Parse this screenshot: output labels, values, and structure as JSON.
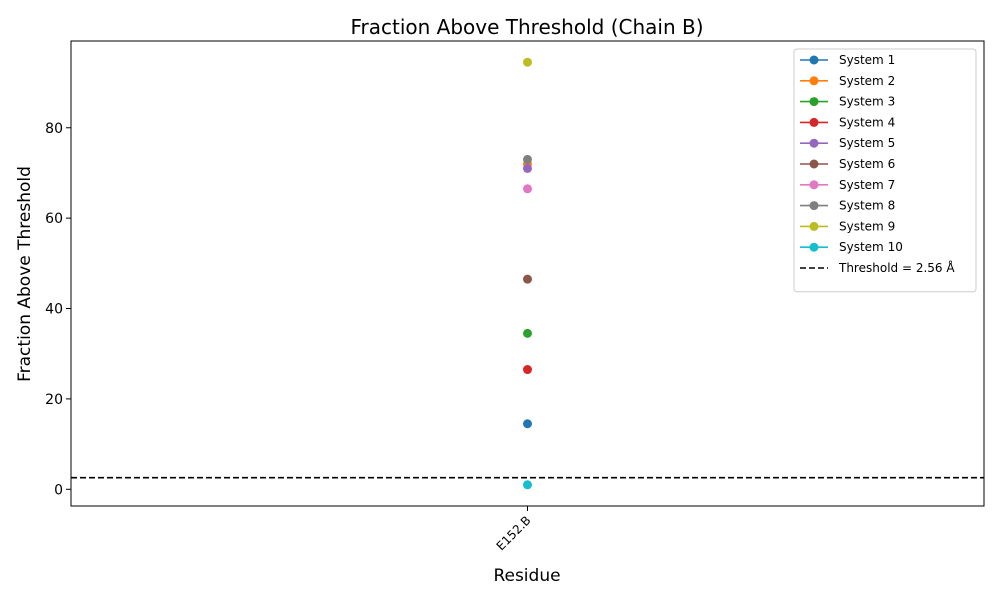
{
  "chart_data": {
    "type": "scatter",
    "title": "Fraction Above Threshold (Chain B)",
    "xlabel": "Residue",
    "ylabel": "Fraction Above Threshold",
    "categories": [
      "E152.B"
    ],
    "ylim": [
      -3.7,
      99.2
    ],
    "yticks": [
      0,
      20,
      40,
      60,
      80
    ],
    "grid": false,
    "legend_position": "top-right",
    "series": [
      {
        "name": "System 1",
        "color": "#1f77b4",
        "values": [
          14.5
        ]
      },
      {
        "name": "System 2",
        "color": "#ff7f0e",
        "values": [
          72.0
        ]
      },
      {
        "name": "System 3",
        "color": "#2ca02c",
        "values": [
          34.5
        ]
      },
      {
        "name": "System 4",
        "color": "#d62728",
        "values": [
          26.5
        ]
      },
      {
        "name": "System 5",
        "color": "#9467bd",
        "values": [
          71.0
        ]
      },
      {
        "name": "System 6",
        "color": "#8c564b",
        "values": [
          46.5
        ]
      },
      {
        "name": "System 7",
        "color": "#e377c2",
        "values": [
          66.5
        ]
      },
      {
        "name": "System 8",
        "color": "#7f7f7f",
        "values": [
          73.0
        ]
      },
      {
        "name": "System 9",
        "color": "#bcbd22",
        "values": [
          94.5
        ]
      },
      {
        "name": "System 10",
        "color": "#17becf",
        "values": [
          1.0
        ]
      }
    ],
    "threshold": {
      "label": "Threshold = 2.56 Å",
      "value": 2.56,
      "color": "#000000",
      "style": "dashed"
    }
  }
}
